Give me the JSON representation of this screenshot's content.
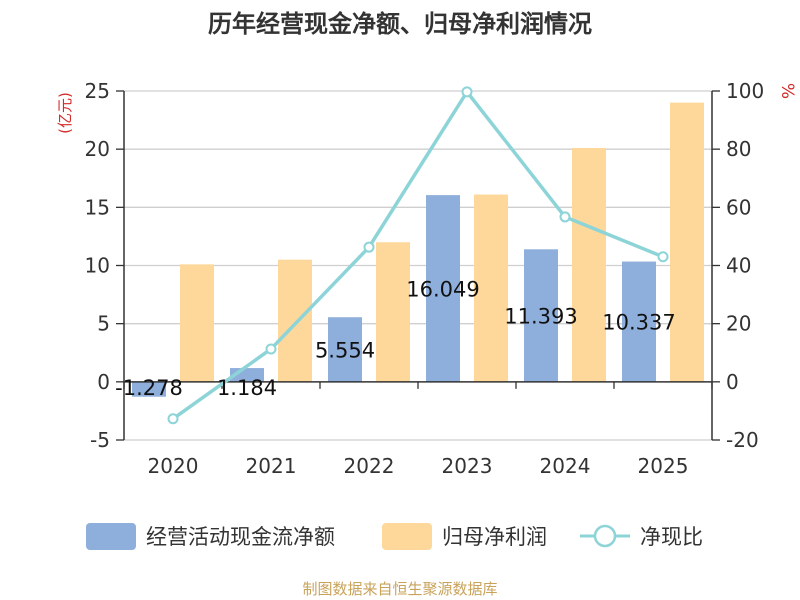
{
  "chart_data": {
    "type": "bar+line",
    "title": "历年经营现金净额、归母净利润情况",
    "categories": [
      "2020",
      "2021",
      "2022",
      "2023",
      "2024",
      "2025"
    ],
    "series": [
      {
        "name": "经营活动现金流净额",
        "type": "bar",
        "axis": "left",
        "color": "#8eaedb",
        "values": [
          -1.278,
          1.184,
          5.554,
          16.049,
          11.393,
          10.337
        ],
        "labels": [
          "-1.278",
          "1.184",
          "5.554",
          "16.049",
          "11.393",
          "10.337"
        ]
      },
      {
        "name": "归母净利润",
        "type": "bar",
        "axis": "left",
        "color": "#fdd89a",
        "values": [
          10.1,
          10.5,
          12.0,
          16.1,
          20.1,
          24.0
        ]
      },
      {
        "name": "净现比",
        "type": "line",
        "axis": "right",
        "color": "#8dd4d8",
        "values": [
          -12.7,
          11.3,
          46.3,
          99.7,
          56.7,
          43.0
        ]
      }
    ],
    "y_left": {
      "unit": "(亿元)",
      "min": -5,
      "max": 25,
      "ticks": [
        -5,
        0,
        5,
        10,
        15,
        20,
        25
      ]
    },
    "y_right": {
      "unit": "%",
      "min": -20,
      "max": 100,
      "ticks": [
        -20,
        0,
        20,
        40,
        60,
        80,
        100
      ]
    },
    "grid": true,
    "legend_position": "bottom"
  },
  "source": "制图数据来自恒生聚源数据库"
}
